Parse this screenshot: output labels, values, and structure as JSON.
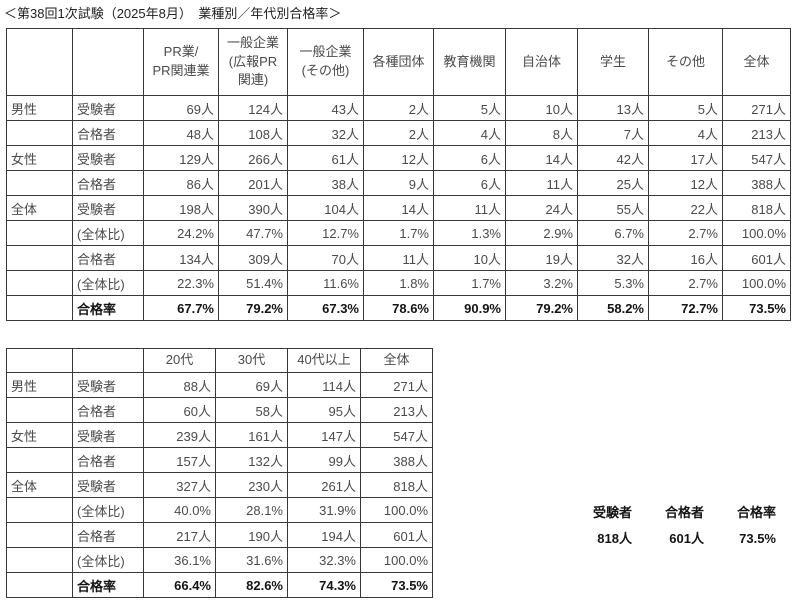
{
  "title": "＜第38回1次試験（2025年8月）　業種別／年代別合格率＞",
  "table1": {
    "col_headers": [
      "PR業/\nPR関連業",
      "一般企業\n(広報PR\n関連)",
      "一般企業\n(その他)",
      "各種団体",
      "教育機関",
      "自治体",
      "学生",
      "その他",
      "全体"
    ],
    "rows": [
      {
        "group": "男性",
        "label": "受験者",
        "bold": false,
        "values": [
          "69人",
          "124人",
          "43人",
          "2人",
          "5人",
          "10人",
          "13人",
          "5人",
          "271人"
        ]
      },
      {
        "group": "",
        "label": "合格者",
        "bold": false,
        "values": [
          "48人",
          "108人",
          "32人",
          "2人",
          "4人",
          "8人",
          "7人",
          "4人",
          "213人"
        ]
      },
      {
        "group": "女性",
        "label": "受験者",
        "bold": false,
        "values": [
          "129人",
          "266人",
          "61人",
          "12人",
          "6人",
          "14人",
          "42人",
          "17人",
          "547人"
        ]
      },
      {
        "group": "",
        "label": "合格者",
        "bold": false,
        "values": [
          "86人",
          "201人",
          "38人",
          "9人",
          "6人",
          "11人",
          "25人",
          "12人",
          "388人"
        ]
      },
      {
        "group": "全体",
        "label": "受験者",
        "bold": false,
        "values": [
          "198人",
          "390人",
          "104人",
          "14人",
          "11人",
          "24人",
          "55人",
          "22人",
          "818人"
        ]
      },
      {
        "group": "",
        "label": "(全体比)",
        "bold": false,
        "values": [
          "24.2%",
          "47.7%",
          "12.7%",
          "1.7%",
          "1.3%",
          "2.9%",
          "6.7%",
          "2.7%",
          "100.0%"
        ]
      },
      {
        "group": "",
        "label": "合格者",
        "bold": false,
        "values": [
          "134人",
          "309人",
          "70人",
          "11人",
          "10人",
          "19人",
          "32人",
          "16人",
          "601人"
        ]
      },
      {
        "group": "",
        "label": "(全体比)",
        "bold": false,
        "values": [
          "22.3%",
          "51.4%",
          "11.6%",
          "1.8%",
          "1.7%",
          "3.2%",
          "5.3%",
          "2.7%",
          "100.0%"
        ]
      },
      {
        "group": "",
        "label": "合格率",
        "bold": true,
        "values": [
          "67.7%",
          "79.2%",
          "67.3%",
          "78.6%",
          "90.9%",
          "79.2%",
          "58.2%",
          "72.7%",
          "73.5%"
        ]
      }
    ]
  },
  "table2": {
    "col_headers": [
      "20代",
      "30代",
      "40代以上",
      "全体"
    ],
    "rows": [
      {
        "group": "男性",
        "label": "受験者",
        "bold": false,
        "values": [
          "88人",
          "69人",
          "114人",
          "271人"
        ]
      },
      {
        "group": "",
        "label": "合格者",
        "bold": false,
        "values": [
          "60人",
          "58人",
          "95人",
          "213人"
        ]
      },
      {
        "group": "女性",
        "label": "受験者",
        "bold": false,
        "values": [
          "239人",
          "161人",
          "147人",
          "547人"
        ]
      },
      {
        "group": "",
        "label": "合格者",
        "bold": false,
        "values": [
          "157人",
          "132人",
          "99人",
          "388人"
        ]
      },
      {
        "group": "全体",
        "label": "受験者",
        "bold": false,
        "values": [
          "327人",
          "230人",
          "261人",
          "818人"
        ]
      },
      {
        "group": "",
        "label": "(全体比)",
        "bold": false,
        "values": [
          "40.0%",
          "28.1%",
          "31.9%",
          "100.0%"
        ]
      },
      {
        "group": "",
        "label": "合格者",
        "bold": false,
        "values": [
          "217人",
          "190人",
          "194人",
          "601人"
        ]
      },
      {
        "group": "",
        "label": "(全体比)",
        "bold": false,
        "values": [
          "36.1%",
          "31.6%",
          "32.3%",
          "100.0%"
        ]
      },
      {
        "group": "",
        "label": "合格率",
        "bold": true,
        "values": [
          "66.4%",
          "82.6%",
          "74.3%",
          "73.5%"
        ]
      }
    ]
  },
  "summary": {
    "headers": [
      "受験者",
      "合格者",
      "合格率"
    ],
    "values": [
      "818人",
      "601人",
      "73.5%"
    ]
  },
  "colors": {
    "text_regular": "#4a4a4a",
    "text_bold": "#141414",
    "border": "#383838",
    "background": "#ffffff"
  }
}
